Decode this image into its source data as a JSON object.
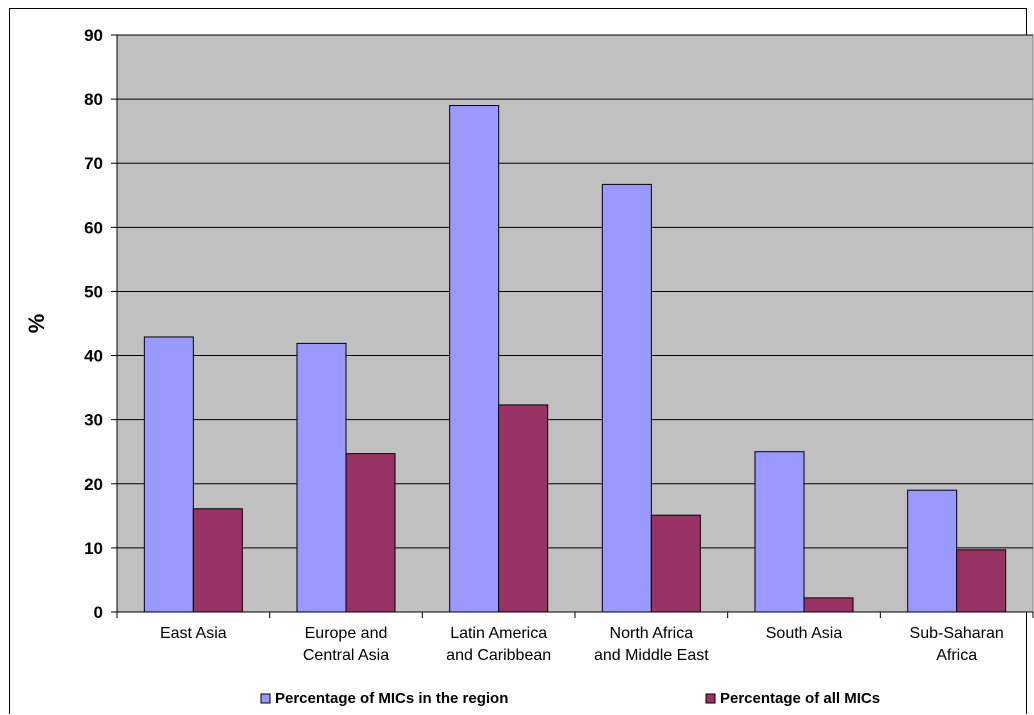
{
  "chart_data": {
    "type": "bar",
    "title": "",
    "xlabel": "",
    "ylabel": "%",
    "ylim": [
      0,
      90
    ],
    "yticks": [
      0,
      10,
      20,
      30,
      40,
      50,
      60,
      70,
      80,
      90
    ],
    "grid": true,
    "legend_position": "bottom",
    "categories": [
      [
        "East Asia"
      ],
      [
        "Europe and",
        "Central Asia"
      ],
      [
        "Latin America",
        "and Caribbean"
      ],
      [
        "North Africa",
        "and Middle East"
      ],
      [
        "South Asia"
      ],
      [
        "Sub-Saharan",
        "Africa"
      ]
    ],
    "series": [
      {
        "name": "Percentage of MICs in the region",
        "color": "#9999ff",
        "values": [
          42.9,
          41.9,
          79.0,
          66.7,
          25.0,
          19.0
        ]
      },
      {
        "name": "Percentage of all MICs",
        "color": "#993366",
        "values": [
          16.1,
          24.7,
          32.3,
          15.1,
          2.2,
          9.7
        ]
      }
    ],
    "plot_background": "#c0c0c0"
  }
}
